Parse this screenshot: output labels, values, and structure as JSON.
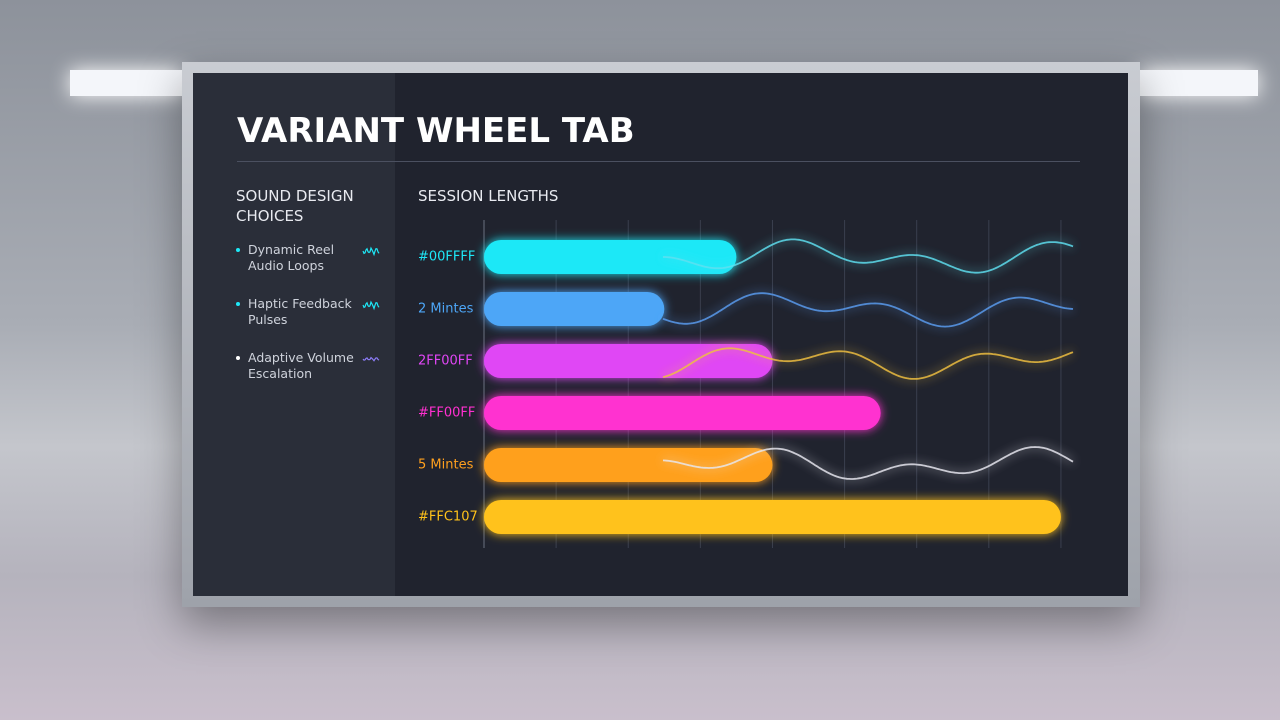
{
  "header": {
    "title": "VARIANT WHEEL TAB"
  },
  "sidebar": {
    "heading": "SOUND DESIGN CHOICES",
    "items": [
      "Dynamic Reel Audio Loops",
      "Haptic Feedback Pulses",
      "Adaptive Volume Escalation"
    ]
  },
  "chart_data": {
    "type": "bar",
    "orientation": "horizontal",
    "title": "SESSION LENGTHS",
    "categories": [
      "#00FFFF",
      "2 Mintes",
      "2FF00FF",
      "#FF00FF",
      "5 Mintes",
      "#FFC107"
    ],
    "values": [
      3.5,
      2.5,
      4,
      5.5,
      4,
      8
    ],
    "colors": [
      "#1ee8f7",
      "#4da6f7",
      "#e046f5",
      "#ff30d0",
      "#ffa01e",
      "#ffc21a"
    ],
    "xlim": [
      0,
      8.5
    ],
    "grid": true
  }
}
